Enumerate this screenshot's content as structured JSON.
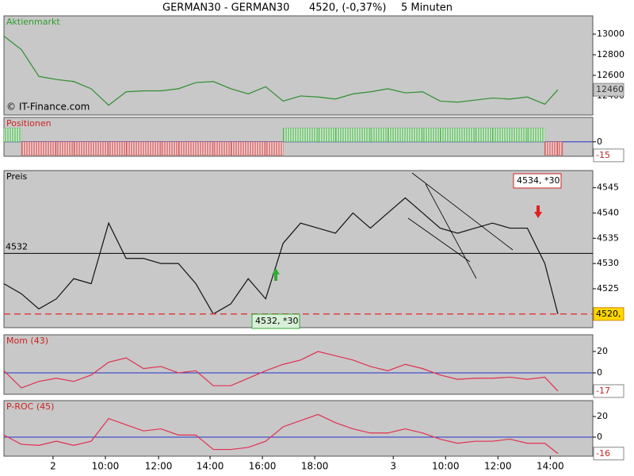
{
  "header": {
    "symbol": "GERMAN30 - GERMAN30",
    "quote": "4520, (-0,37%)",
    "interval": "5 Minuten"
  },
  "chart_data": [
    {
      "type": "line",
      "title": "Aktienmarkt",
      "title_color": "#2a9d2a",
      "watermark": "© IT-Finance.com",
      "color": "#2f8f2f",
      "x": [
        0,
        8,
        16,
        24,
        32,
        40,
        48,
        56,
        64,
        72,
        80,
        88,
        96,
        104,
        112,
        120,
        128,
        136,
        144,
        152,
        160,
        168,
        176,
        184,
        192,
        200,
        208,
        216,
        224,
        232,
        240,
        248,
        254
      ],
      "values": [
        12980,
        12850,
        12590,
        12560,
        12540,
        12470,
        12310,
        12440,
        12450,
        12450,
        12470,
        12530,
        12540,
        12470,
        12420,
        12490,
        12350,
        12400,
        12390,
        12370,
        12420,
        12440,
        12470,
        12430,
        12440,
        12350,
        12340,
        12360,
        12380,
        12370,
        12390,
        12320,
        12460
      ],
      "xlim": [
        0,
        270
      ],
      "ylim": [
        12215,
        13177
      ],
      "yticks": [
        12400,
        12600,
        12800,
        13000
      ],
      "last_value": 12460
    },
    {
      "type": "bar",
      "title": "Positionen",
      "title_color": "#cc2222",
      "up_color": "#33aa33",
      "down_color": "#cc3333",
      "baseline": 0,
      "x": [
        0,
        8,
        16,
        24,
        32,
        40,
        48,
        56,
        64,
        72,
        80,
        88,
        96,
        104,
        112,
        120,
        128,
        136,
        144,
        152,
        160,
        168,
        176,
        184,
        192,
        200,
        208,
        216,
        224,
        232,
        240,
        248,
        254
      ],
      "values": [
        15,
        -15,
        -15,
        -15,
        -15,
        -15,
        -15,
        -15,
        -15,
        -15,
        -15,
        -15,
        -15,
        -15,
        -15,
        -15,
        15,
        15,
        15,
        15,
        15,
        15,
        15,
        15,
        15,
        15,
        15,
        15,
        15,
        15,
        15,
        -15,
        -15
      ],
      "xlim": [
        0,
        270
      ],
      "ylim": [
        -16,
        27
      ],
      "yticks": [
        0
      ],
      "last_value": -15
    },
    {
      "type": "line",
      "title": "Preis",
      "title_color": "#000000",
      "color": "#111111",
      "x": [
        0,
        8,
        16,
        24,
        32,
        40,
        48,
        56,
        64,
        72,
        80,
        88,
        96,
        104,
        112,
        120,
        128,
        136,
        144,
        152,
        160,
        168,
        176,
        184,
        192,
        200,
        208,
        216,
        224,
        232,
        240,
        248,
        254
      ],
      "values": [
        4526,
        4524,
        4521,
        4523,
        4527,
        4526,
        4538,
        4531,
        4531,
        4530,
        4530,
        4526,
        4520,
        4522,
        4527,
        4523,
        4534,
        4538,
        4537,
        4536,
        4540,
        4537,
        4540,
        4543,
        4540,
        4537,
        4536,
        4537,
        4538,
        4537,
        4537,
        4530,
        4520
      ],
      "xlim": [
        0,
        270
      ],
      "ylim": [
        4517.3,
        4548.4
      ],
      "yticks": [
        4525,
        4530,
        4535,
        4540,
        4545
      ],
      "reference_line": 4532,
      "last_value": {
        "value": 4520,
        "label": "4520,"
      },
      "annotations": [
        "4532, *30",
        "4534, *30"
      ]
    },
    {
      "type": "line",
      "title": "Mom (43)",
      "title_color": "#cc2222",
      "color": "#e03050",
      "baseline": 0,
      "x": [
        0,
        8,
        16,
        24,
        32,
        40,
        48,
        56,
        64,
        72,
        80,
        88,
        96,
        104,
        112,
        120,
        128,
        136,
        144,
        152,
        160,
        168,
        176,
        184,
        192,
        200,
        208,
        216,
        224,
        232,
        240,
        248,
        254
      ],
      "values": [
        2,
        -14,
        -8,
        -5,
        -8,
        -2,
        10,
        14,
        4,
        6,
        0,
        2,
        -12,
        -12,
        -5,
        2,
        8,
        12,
        20,
        16,
        12,
        6,
        2,
        8,
        4,
        -2,
        -6,
        -5,
        -5,
        -4,
        -6,
        -4,
        -17
      ],
      "xlim": [
        0,
        270
      ],
      "ylim": [
        -20,
        35.6
      ],
      "yticks": [
        0,
        20
      ],
      "last_value": -17
    },
    {
      "type": "line",
      "title": "P-ROC (45)",
      "title_color": "#cc2222",
      "color": "#e03050",
      "baseline": 0,
      "x": [
        0,
        8,
        16,
        24,
        32,
        40,
        48,
        56,
        64,
        72,
        80,
        88,
        96,
        104,
        112,
        120,
        128,
        136,
        144,
        152,
        160,
        168,
        176,
        184,
        192,
        200,
        208,
        216,
        224,
        232,
        240,
        248,
        254
      ],
      "values": [
        2,
        -7,
        -8,
        -4,
        -8,
        -4,
        18,
        12,
        6,
        8,
        2,
        2,
        -12,
        -12,
        -10,
        -4,
        10,
        16,
        22,
        14,
        8,
        4,
        4,
        8,
        4,
        -2,
        -6,
        -4,
        -4,
        -2,
        -6,
        -6,
        -16
      ],
      "xlim": [
        0,
        270
      ],
      "ylim": [
        -18.5,
        35.4
      ],
      "yticks": [
        0,
        20
      ],
      "last_value": -16,
      "xticks": [
        {
          "value": 22.5,
          "label": "2"
        },
        {
          "value": 46.5,
          "label": "10:00"
        },
        {
          "value": 70.9,
          "label": "12:00"
        },
        {
          "value": 94.5,
          "label": "14:00"
        },
        {
          "value": 118.5,
          "label": "16:00"
        },
        {
          "value": 142.5,
          "label": "18:00"
        },
        {
          "value": 178.5,
          "label": "3"
        },
        {
          "value": 202.5,
          "label": "10:00"
        },
        {
          "value": 226.5,
          "label": "12:00"
        },
        {
          "value": 250.5,
          "label": "14:00"
        }
      ]
    }
  ]
}
